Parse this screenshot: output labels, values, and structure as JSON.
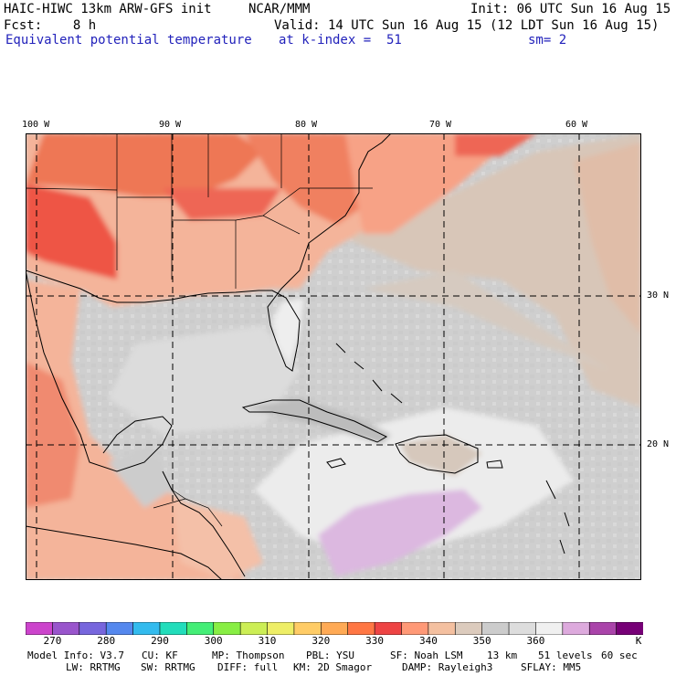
{
  "header": {
    "title_left": "HAIC-HIWC 13km ARW-GFS init",
    "org": "NCAR/MMM",
    "init": "Init: 06 UTC Sun 16 Aug 15",
    "fcst": "Fcst:    8 h",
    "valid": "Valid: 14 UTC Sun 16 Aug 15 (12 LDT Sun 16 Aug 15)",
    "field": "Equivalent potential temperature",
    "level": "at k-index =  51",
    "smooth": "sm= 2"
  },
  "map": {
    "lon_labels": [
      "100 W",
      "90 W",
      "80 W",
      "70 W",
      "60 W"
    ],
    "lat_labels": [
      "30 N",
      "20 N"
    ]
  },
  "colorbar": {
    "colors": [
      "#cc44cc",
      "#9955cc",
      "#7766dd",
      "#5588ee",
      "#33bbee",
      "#22ddbb",
      "#44ee77",
      "#88ee44",
      "#ccee55",
      "#eeee66",
      "#ffcc66",
      "#ffaa55",
      "#ff7744",
      "#ee4444",
      "#ff9977",
      "#f4c0a0",
      "#dccbbd",
      "#cccccc",
      "#dddddd",
      "#f0f0f0",
      "#ddaadd",
      "#aa44aa",
      "#770077"
    ],
    "labels": [
      "270",
      "280",
      "290",
      "300",
      "310",
      "320",
      "330",
      "340",
      "350",
      "360"
    ],
    "unit": "K"
  },
  "footer": {
    "line1": [
      "Model Info: V3.7",
      "CU: KF",
      "MP: Thompson",
      "PBL: YSU",
      "SF: Noah LSM",
      "13 km",
      "51 levels",
      "60 sec"
    ],
    "line2": [
      "LW: RRTMG",
      "SW: RRTMG",
      "DIFF: full",
      "KM: 2D Smagor",
      "DAMP: Rayleigh3",
      "SFLAY: MM5"
    ]
  }
}
